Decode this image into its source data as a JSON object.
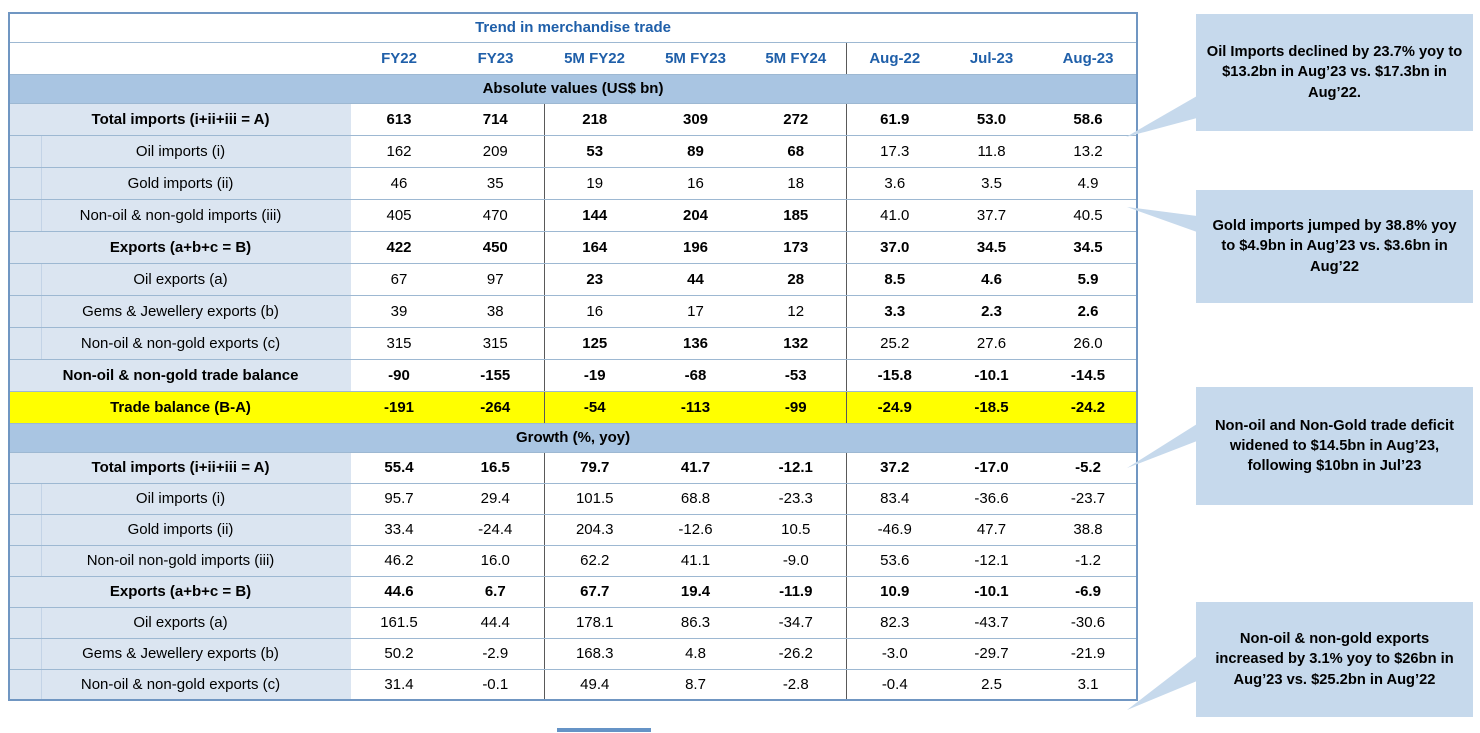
{
  "chart_data": {
    "type": "table",
    "title": "Trend in merchandise trade",
    "section_headers": [
      "Absolute values (US$ bn)",
      "Growth (%, yoy)"
    ],
    "columns": [
      "FY22",
      "FY23",
      "5M FY22",
      "5M FY23",
      "5M FY24",
      "Aug-22",
      "Jul-23",
      "Aug-23"
    ],
    "sections": [
      {
        "header": "Absolute values (US$ bn)",
        "rows": [
          {
            "label": "Total imports (i+ii+iii = A)",
            "style": "total",
            "values": [
              "613",
              "714",
              "218",
              "309",
              "272",
              "61.9",
              "53.0",
              "58.6"
            ]
          },
          {
            "label": "Oil imports (i)",
            "style": "sub",
            "split": true,
            "bold_cols": [
              2,
              3,
              4
            ],
            "values": [
              "162",
              "209",
              "53",
              "89",
              "68",
              "17.3",
              "11.8",
              "13.2"
            ]
          },
          {
            "label": "Gold imports (ii)",
            "style": "sub",
            "values": [
              "46",
              "35",
              "19",
              "16",
              "18",
              "3.6",
              "3.5",
              "4.9"
            ]
          },
          {
            "label": "Non-oil & non-gold imports (iii)",
            "style": "sub",
            "split": true,
            "bold_cols": [
              2,
              3,
              4
            ],
            "values": [
              "405",
              "470",
              "144",
              "204",
              "185",
              "41.0",
              "37.7",
              "40.5"
            ]
          },
          {
            "label": "Exports (a+b+c = B)",
            "style": "total",
            "values": [
              "422",
              "450",
              "164",
              "196",
              "173",
              "37.0",
              "34.5",
              "34.5"
            ]
          },
          {
            "label": "Oil exports (a)",
            "style": "sub",
            "split": true,
            "bold_cols": [
              2,
              3,
              4,
              5,
              6,
              7
            ],
            "values": [
              "67",
              "97",
              "23",
              "44",
              "28",
              "8.5",
              "4.6",
              "5.9"
            ]
          },
          {
            "label": "Gems & Jewellery exports (b)",
            "style": "sub",
            "bold_cols": [
              5,
              6,
              7
            ],
            "values": [
              "39",
              "38",
              "16",
              "17",
              "12",
              "3.3",
              "2.3",
              "2.6"
            ]
          },
          {
            "label": "Non-oil & non-gold exports (c)",
            "style": "sub",
            "split": true,
            "bold_cols": [
              2,
              3,
              4
            ],
            "values": [
              "315",
              "315",
              "125",
              "136",
              "132",
              "25.2",
              "27.6",
              "26.0"
            ]
          },
          {
            "label": "Non-oil & non-gold trade balance",
            "style": "total",
            "values": [
              "-90",
              "-155",
              "-19",
              "-68",
              "-53",
              "-15.8",
              "-10.1",
              "-14.5"
            ]
          },
          {
            "label": "Trade balance (B-A)",
            "style": "yellow",
            "split": true,
            "values": [
              "-191",
              "-264",
              "-54",
              "-113",
              "-99",
              "-24.9",
              "-18.5",
              "-24.2"
            ]
          }
        ]
      },
      {
        "header": "Growth (%, yoy)",
        "rows": [
          {
            "label": "Total imports (i+ii+iii = A)",
            "style": "total",
            "values": [
              "55.4",
              "16.5",
              "79.7",
              "41.7",
              "-12.1",
              "37.2",
              "-17.0",
              "-5.2"
            ]
          },
          {
            "label": "Oil imports (i)",
            "style": "sub",
            "values": [
              "95.7",
              "29.4",
              "101.5",
              "68.8",
              "-23.3",
              "83.4",
              "-36.6",
              "-23.7"
            ]
          },
          {
            "label": "Gold imports (ii)",
            "style": "sub",
            "values": [
              "33.4",
              "-24.4",
              "204.3",
              "-12.6",
              "10.5",
              "-46.9",
              "47.7",
              "38.8"
            ]
          },
          {
            "label": "Non-oil non-gold imports (iii)",
            "style": "sub",
            "values": [
              "46.2",
              "16.0",
              "62.2",
              "41.1",
              "-9.0",
              "53.6",
              "-12.1",
              "-1.2"
            ]
          },
          {
            "label": "Exports (a+b+c = B)",
            "style": "total",
            "values": [
              "44.6",
              "6.7",
              "67.7",
              "19.4",
              "-11.9",
              "10.9",
              "-10.1",
              "-6.9"
            ]
          },
          {
            "label": "Oil exports (a)",
            "style": "sub",
            "values": [
              "161.5",
              "44.4",
              "178.1",
              "86.3",
              "-34.7",
              "82.3",
              "-43.7",
              "-30.6"
            ]
          },
          {
            "label": "Gems & Jewellery exports (b)",
            "style": "sub",
            "values": [
              "50.2",
              "-2.9",
              "168.3",
              "4.8",
              "-26.2",
              "-3.0",
              "-29.7",
              "-21.9"
            ]
          },
          {
            "label": "Non-oil & non-gold exports (c)",
            "style": "sub",
            "values": [
              "31.4",
              "-0.1",
              "49.4",
              "8.7",
              "-2.8",
              "-0.4",
              "2.5",
              "3.1"
            ]
          }
        ]
      }
    ]
  },
  "callouts": [
    {
      "text": "Oil Imports declined by 23.7% yoy to $13.2bn in Aug’23 vs. $17.3bn in Aug’22."
    },
    {
      "text": "Gold imports jumped by 38.8% yoy to $4.9bn in Aug’23 vs. $3.6bn in Aug’22"
    },
    {
      "text": "Non-oil and Non-Gold trade deficit widened to $14.5bn in Aug’23, following $10bn in Jul’23"
    },
    {
      "text": "Non-oil & non-gold exports increased by 3.1% yoy to $26bn in Aug’23 vs. $25.2bn in Aug’22"
    }
  ],
  "colors": {
    "header_text_blue": "#1f5fa9",
    "section_band_blue": "#a9c5e2",
    "label_column_blue": "#dbe5f1",
    "highlight_yellow": "#ffff00",
    "callout_blue": "#c6d9ec"
  }
}
